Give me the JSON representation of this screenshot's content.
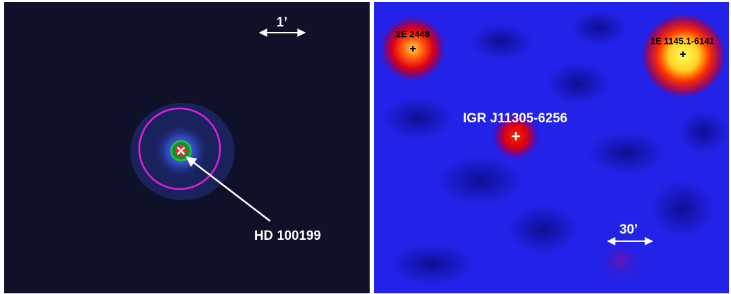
{
  "panels": [
    {
      "scale_label": "1’",
      "source_label": "HD 100199"
    },
    {
      "scale_label": "30’",
      "sources": [
        {
          "label": "2E 2448"
        },
        {
          "label": "1E 1145.1-6141"
        },
        {
          "label": "IGR J11305-6256"
        }
      ]
    }
  ]
}
